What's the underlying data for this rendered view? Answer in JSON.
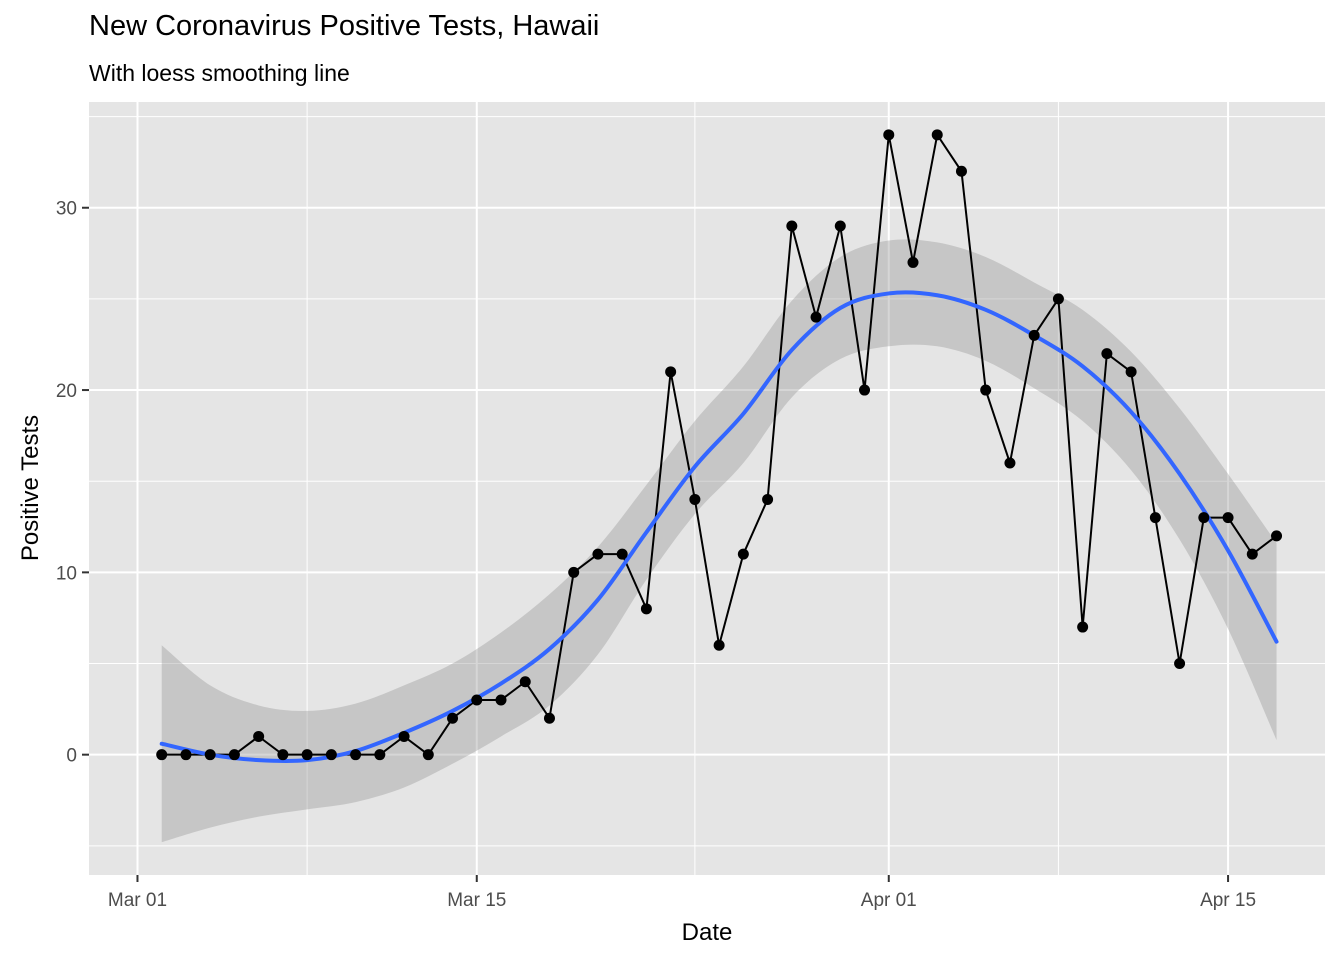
{
  "chart_data": {
    "type": "line",
    "title": "New Coronavirus Positive Tests, Hawaii",
    "subtitle": "With loess smoothing line",
    "xlabel": "Date",
    "ylabel": "Positive Tests",
    "x_ticks": [
      {
        "date": "2020-03-01",
        "label": "Mar 01"
      },
      {
        "date": "2020-03-15",
        "label": "Mar 15"
      },
      {
        "date": "2020-04-01",
        "label": "Apr 01"
      },
      {
        "date": "2020-04-15",
        "label": "Apr 15"
      }
    ],
    "x_minor_breaks": [
      "2020-03-08",
      "2020-03-24",
      "2020-04-08"
    ],
    "xlim": [
      "2020-02-28",
      "2020-04-19"
    ],
    "y_ticks": [
      0,
      10,
      20,
      30
    ],
    "ylim": [
      -6.6,
      35.8
    ],
    "grid": true,
    "series": [
      {
        "type": "line+points",
        "color": "#000000",
        "points": [
          {
            "x": "2020-03-02",
            "y": 0
          },
          {
            "x": "2020-03-03",
            "y": 0
          },
          {
            "x": "2020-03-04",
            "y": 0
          },
          {
            "x": "2020-03-05",
            "y": 0
          },
          {
            "x": "2020-03-06",
            "y": 1
          },
          {
            "x": "2020-03-07",
            "y": 0
          },
          {
            "x": "2020-03-08",
            "y": 0
          },
          {
            "x": "2020-03-09",
            "y": 0
          },
          {
            "x": "2020-03-10",
            "y": 0
          },
          {
            "x": "2020-03-11",
            "y": 0
          },
          {
            "x": "2020-03-12",
            "y": 1
          },
          {
            "x": "2020-03-13",
            "y": 0
          },
          {
            "x": "2020-03-14",
            "y": 2
          },
          {
            "x": "2020-03-15",
            "y": 3
          },
          {
            "x": "2020-03-16",
            "y": 3
          },
          {
            "x": "2020-03-17",
            "y": 4
          },
          {
            "x": "2020-03-18",
            "y": 2
          },
          {
            "x": "2020-03-19",
            "y": 10
          },
          {
            "x": "2020-03-20",
            "y": 11
          },
          {
            "x": "2020-03-21",
            "y": 11
          },
          {
            "x": "2020-03-22",
            "y": 8
          },
          {
            "x": "2020-03-23",
            "y": 21
          },
          {
            "x": "2020-03-24",
            "y": 14
          },
          {
            "x": "2020-03-25",
            "y": 6
          },
          {
            "x": "2020-03-26",
            "y": 11
          },
          {
            "x": "2020-03-27",
            "y": 14
          },
          {
            "x": "2020-03-28",
            "y": 29
          },
          {
            "x": "2020-03-29",
            "y": 24
          },
          {
            "x": "2020-03-30",
            "y": 29
          },
          {
            "x": "2020-03-31",
            "y": 20
          },
          {
            "x": "2020-04-01",
            "y": 34
          },
          {
            "x": "2020-04-02",
            "y": 27
          },
          {
            "x": "2020-04-03",
            "y": 34
          },
          {
            "x": "2020-04-04",
            "y": 32
          },
          {
            "x": "2020-04-05",
            "y": 20
          },
          {
            "x": "2020-04-06",
            "y": 16
          },
          {
            "x": "2020-04-07",
            "y": 23
          },
          {
            "x": "2020-04-08",
            "y": 25
          },
          {
            "x": "2020-04-09",
            "y": 7
          },
          {
            "x": "2020-04-10",
            "y": 22
          },
          {
            "x": "2020-04-11",
            "y": 21
          },
          {
            "x": "2020-04-12",
            "y": 13
          },
          {
            "x": "2020-04-13",
            "y": 5
          },
          {
            "x": "2020-04-14",
            "y": 13
          },
          {
            "x": "2020-04-15",
            "y": 13
          },
          {
            "x": "2020-04-16",
            "y": 11
          },
          {
            "x": "2020-04-17",
            "y": 12
          }
        ]
      },
      {
        "type": "loess",
        "color": "#3366FF",
        "ribbon_color": "#999999",
        "points": [
          {
            "x": "2020-03-02",
            "y": 0.6,
            "lower": -4.8,
            "upper": 6.0
          },
          {
            "x": "2020-03-04",
            "y": 0.0,
            "lower": -4.0,
            "upper": 3.8
          },
          {
            "x": "2020-03-06",
            "y": -0.3,
            "lower": -3.4,
            "upper": 2.7
          },
          {
            "x": "2020-03-08",
            "y": -0.3,
            "lower": -3.0,
            "upper": 2.4
          },
          {
            "x": "2020-03-10",
            "y": 0.2,
            "lower": -2.6,
            "upper": 2.8
          },
          {
            "x": "2020-03-12",
            "y": 1.2,
            "lower": -1.8,
            "upper": 3.8
          },
          {
            "x": "2020-03-14",
            "y": 2.4,
            "lower": -0.5,
            "upper": 5.0
          },
          {
            "x": "2020-03-16",
            "y": 3.9,
            "lower": 1.0,
            "upper": 6.7
          },
          {
            "x": "2020-03-18",
            "y": 5.8,
            "lower": 2.7,
            "upper": 8.8
          },
          {
            "x": "2020-03-20",
            "y": 8.5,
            "lower": 5.5,
            "upper": 11.4
          },
          {
            "x": "2020-03-22",
            "y": 12.2,
            "lower": 9.6,
            "upper": 14.8
          },
          {
            "x": "2020-03-24",
            "y": 15.8,
            "lower": 13.2,
            "upper": 18.3
          },
          {
            "x": "2020-03-26",
            "y": 18.7,
            "lower": 16.0,
            "upper": 21.3
          },
          {
            "x": "2020-03-28",
            "y": 22.2,
            "lower": 19.6,
            "upper": 24.9
          },
          {
            "x": "2020-03-30",
            "y": 24.5,
            "lower": 21.7,
            "upper": 27.3
          },
          {
            "x": "2020-04-01",
            "y": 25.3,
            "lower": 22.4,
            "upper": 28.2
          },
          {
            "x": "2020-04-03",
            "y": 25.2,
            "lower": 22.4,
            "upper": 28.1
          },
          {
            "x": "2020-04-05",
            "y": 24.4,
            "lower": 21.6,
            "upper": 27.3
          },
          {
            "x": "2020-04-07",
            "y": 23.0,
            "lower": 20.1,
            "upper": 25.9
          },
          {
            "x": "2020-04-09",
            "y": 21.3,
            "lower": 18.3,
            "upper": 24.4
          },
          {
            "x": "2020-04-11",
            "y": 18.8,
            "lower": 15.6,
            "upper": 22.1
          },
          {
            "x": "2020-04-13",
            "y": 15.4,
            "lower": 11.8,
            "upper": 19.0
          },
          {
            "x": "2020-04-15",
            "y": 11.2,
            "lower": 6.9,
            "upper": 15.4
          },
          {
            "x": "2020-04-17",
            "y": 6.2,
            "lower": 0.8,
            "upper": 11.6
          }
        ]
      }
    ],
    "colors": {
      "panel_background": "#E5E5E5",
      "grid_major": "#FFFFFF",
      "tick_text": "#4D4D4D"
    }
  }
}
